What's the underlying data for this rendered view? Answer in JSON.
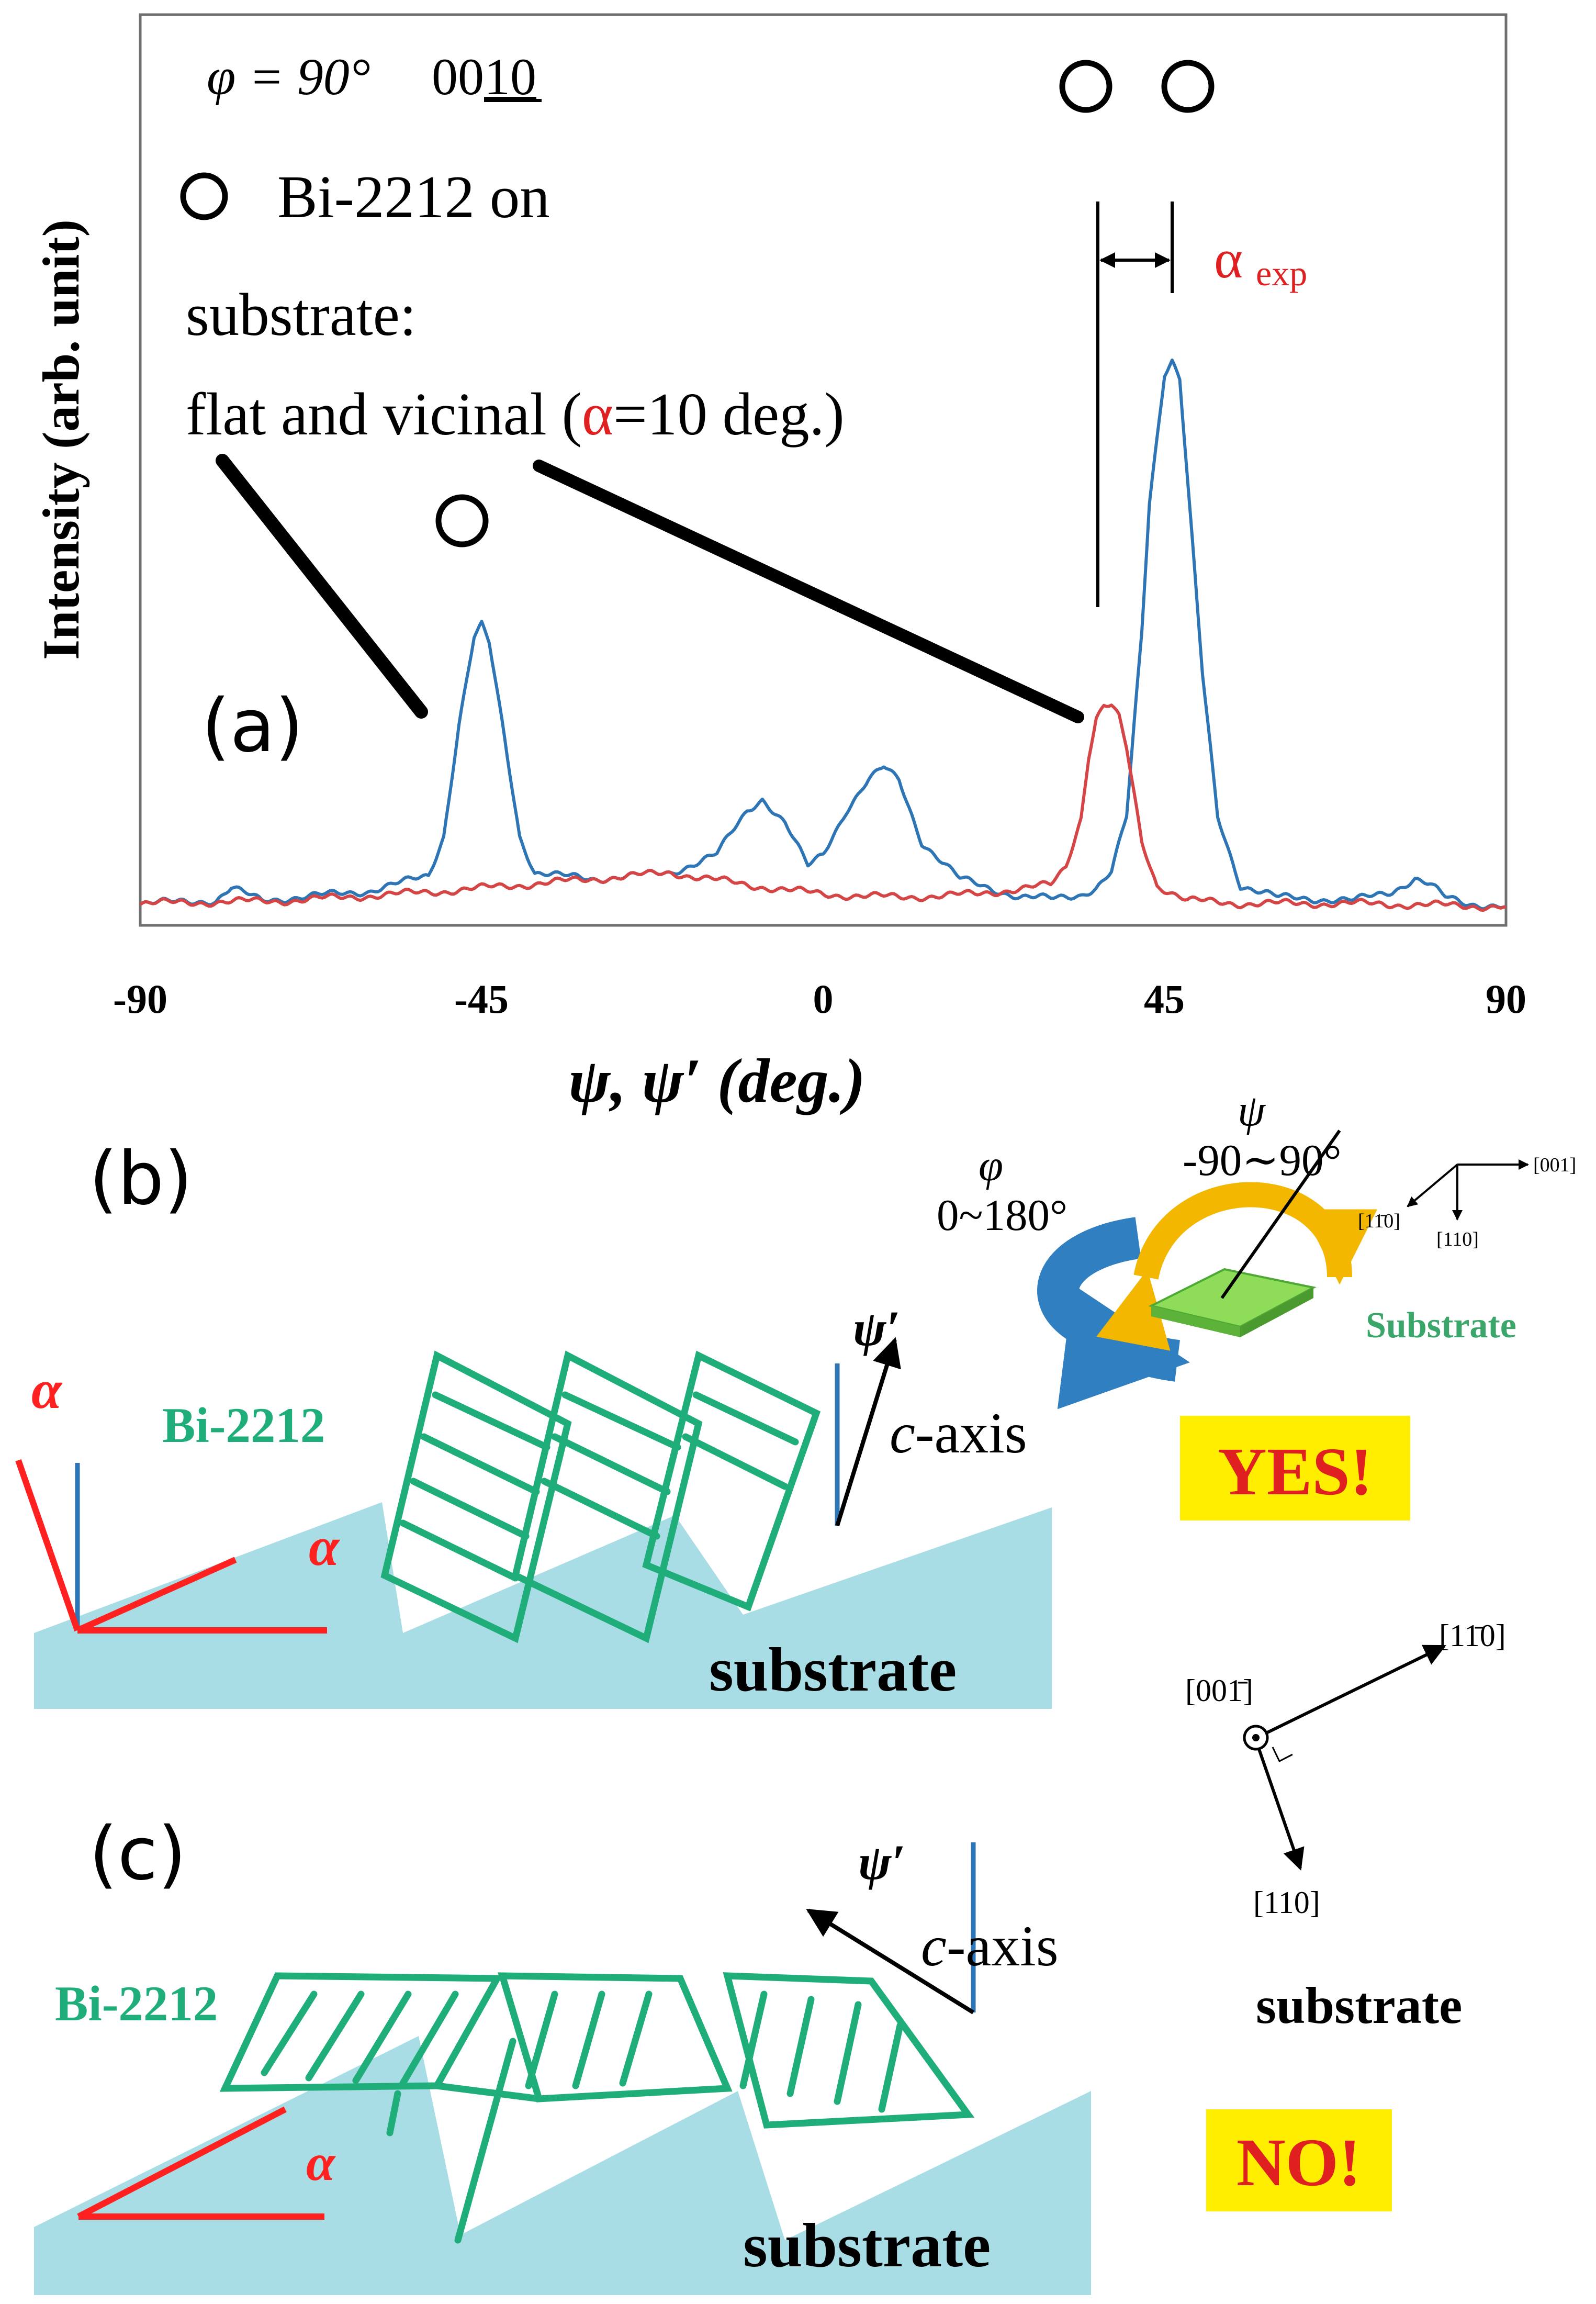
{
  "colors": {
    "blue": "#2e75b6",
    "red": "#e02020",
    "red_curve": "#d64545",
    "green": "#1fae7a",
    "substrate_fill": "#a8dde6",
    "yellow": "#ffee00",
    "black": "#000000"
  },
  "panel_a": {
    "label": "(a)",
    "phi_text": "φ = 90°",
    "reflection_prefix": "00",
    "reflection_underlined": "10",
    "legend_text": "Bi-2212 on",
    "desc_line1": "substrate:",
    "desc_line2_start": "flat and vicinal (",
    "desc_alpha": "α",
    "desc_line2_end": "=10 deg.)",
    "alpha_exp_symbol": "α",
    "alpha_exp_sub": "exp"
  },
  "chart_data": {
    "type": "line",
    "title": "",
    "xlabel": "ψ, ψ′ (deg.)",
    "ylabel": "Intensity (arb. unit)",
    "xlim": [
      -90,
      90
    ],
    "ylim": [
      0,
      100
    ],
    "x_ticks": [
      -90,
      -45,
      0,
      45,
      90
    ],
    "x_tick_labels": [
      "-90",
      "-45",
      "0",
      "45",
      "90"
    ],
    "series": [
      {
        "name": "vicinal",
        "color": "#2e75b6",
        "x": [
          -90,
          -80,
          -78,
          -74,
          -60,
          -52,
          -50,
          -48,
          -46,
          -45,
          -44,
          -42,
          -40,
          -38,
          -35,
          -30,
          -20,
          -14,
          -10,
          -8,
          -5,
          -2,
          0,
          3,
          6,
          8,
          10,
          13,
          18,
          26,
          30,
          34,
          36,
          38,
          40,
          42,
          43,
          45,
          46,
          47,
          48,
          50,
          52,
          55,
          60,
          70,
          75,
          78,
          80,
          82,
          85,
          90
        ],
        "y": [
          1,
          1.5,
          3.5,
          1.5,
          3,
          5.5,
          12,
          30,
          44,
          46,
          43,
          28,
          12,
          6,
          5.5,
          5,
          6,
          9,
          16,
          18,
          14,
          7,
          9,
          16,
          21,
          23,
          21,
          11,
          5,
          2,
          1.8,
          2.5,
          3.5,
          6,
          15,
          45,
          66,
          87,
          89,
          86,
          70,
          38,
          15,
          4,
          2,
          1.5,
          3,
          5,
          4,
          2,
          1,
          0.5
        ]
      },
      {
        "name": "flat",
        "color": "#d64545",
        "x": [
          -90,
          -70,
          -50,
          -30,
          -20,
          -10,
          0,
          10,
          20,
          30,
          32,
          34,
          35,
          36,
          37,
          38,
          39,
          40,
          42,
          44,
          48,
          55,
          70,
          90
        ],
        "y": [
          1,
          1.5,
          3,
          5,
          6,
          4,
          2.5,
          2,
          2.5,
          4,
          7,
          15,
          25,
          31,
          33,
          33,
          31,
          26,
          11,
          4,
          1.5,
          1,
          1,
          0.5
        ]
      }
    ],
    "annotations": [
      "α exp"
    ]
  },
  "panel_b": {
    "label": "(b)",
    "alpha_left": "α",
    "alpha_inner": "α",
    "film_label": "Bi-2212",
    "psi_prime": "ψ′",
    "c_prefix": "c",
    "c_suffix": "-axis",
    "substrate_label": "substrate",
    "verdict": "YES!"
  },
  "goniometer": {
    "phi_symbol": "φ",
    "phi_range": "0~180°",
    "psi_symbol": "ψ",
    "psi_range": "-90∼90°",
    "substrate_label": "Substrate",
    "axis_001": "[001]",
    "axis_1m10": "[11̄0]",
    "axis_110": "[110]"
  },
  "crystal_axes": {
    "axis_00m1": "[001̄]",
    "axis_1m10": "[11̄0]",
    "axis_110": "[110]",
    "substrate_label": "substrate"
  },
  "panel_c": {
    "label": "(c)",
    "alpha": "α",
    "film_label": "Bi-2212",
    "psi_prime": "ψ′",
    "c_prefix": "c",
    "c_suffix": "-axis",
    "substrate_label": "substrate",
    "verdict": "NO!"
  }
}
